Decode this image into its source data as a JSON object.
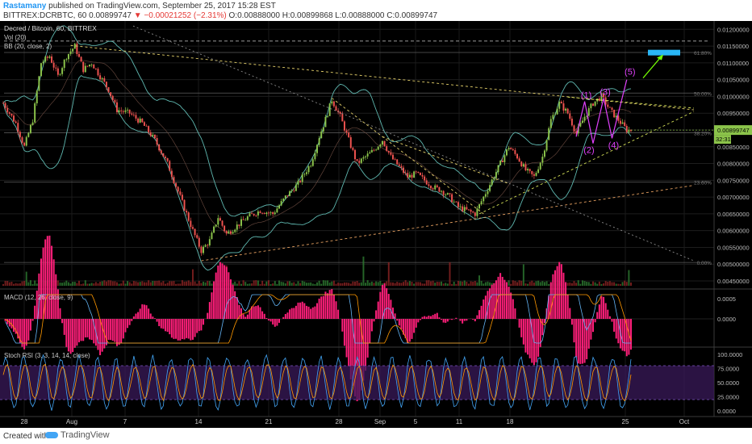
{
  "header": {
    "author": "Rastamany",
    "published_text": "published on TradingView.com, September 25, 2017 15:28 EST",
    "symbol_line": "BITTREX:DCRBTC, 60",
    "last_price": "0.00899747",
    "change": "▼ −0.00021252 (−2.31%)",
    "ohlc": "O:0.00888000 H:0.00899868 L:0.00888000 C:0.00899747"
  },
  "footer": {
    "created_with": "Created with",
    "brand": "TradingView"
  },
  "colors": {
    "background": "#000000",
    "up": "#8bc34a",
    "down": "#ef5350",
    "bollinger": "#5fb8b0",
    "accent_pink": "#e040fb",
    "price_tag": "#8bc34a",
    "target_box": "#29b6f6"
  },
  "chart_data": [
    {
      "type": "candlestick",
      "title": "Decred / Bitcoin, 60, BITTREX",
      "legend": [
        "Vol (20)",
        "BB (20, close, 2)"
      ],
      "ylim": [
        0.0045,
        0.0122
      ],
      "y_ticks": [
        "0.01200000",
        "0.01150000",
        "0.01100000",
        "0.01050000",
        "0.01000000",
        "0.00950000",
        "0.00900000",
        "0.00850000",
        "0.00800000",
        "0.00750000",
        "0.00700000",
        "0.00650000",
        "0.00600000",
        "0.00550000",
        "0.00500000",
        "0.00450000"
      ],
      "x_ticks": [
        "28",
        "Aug",
        "7",
        "14",
        "21",
        "28",
        "Sep",
        "5",
        "11",
        "18",
        "25",
        "Oct"
      ],
      "price_path": [
        [
          0,
          0.0098
        ],
        [
          6,
          0.0092
        ],
        [
          10,
          0.0085
        ],
        [
          14,
          0.0093
        ],
        [
          18,
          0.011
        ],
        [
          22,
          0.0112
        ],
        [
          26,
          0.0106
        ],
        [
          30,
          0.0112
        ],
        [
          34,
          0.0115
        ],
        [
          38,
          0.0108
        ],
        [
          42,
          0.011
        ],
        [
          46,
          0.0106
        ],
        [
          50,
          0.0102
        ],
        [
          54,
          0.0096
        ],
        [
          60,
          0.0095
        ],
        [
          66,
          0.0092
        ],
        [
          72,
          0.0087
        ],
        [
          78,
          0.008
        ],
        [
          84,
          0.007
        ],
        [
          90,
          0.006
        ],
        [
          94,
          0.0054
        ],
        [
          98,
          0.0057
        ],
        [
          102,
          0.0064
        ],
        [
          106,
          0.0059
        ],
        [
          110,
          0.0061
        ],
        [
          116,
          0.0064
        ],
        [
          122,
          0.0066
        ],
        [
          128,
          0.0065
        ],
        [
          134,
          0.007
        ],
        [
          140,
          0.0074
        ],
        [
          146,
          0.008
        ],
        [
          150,
          0.0088
        ],
        [
          154,
          0.0095
        ],
        [
          156,
          0.0099
        ],
        [
          160,
          0.0094
        ],
        [
          164,
          0.0087
        ],
        [
          168,
          0.008
        ],
        [
          172,
          0.0082
        ],
        [
          176,
          0.0084
        ],
        [
          180,
          0.0087
        ],
        [
          184,
          0.0082
        ],
        [
          188,
          0.0079
        ],
        [
          192,
          0.0076
        ],
        [
          196,
          0.0077
        ],
        [
          200,
          0.0075
        ],
        [
          204,
          0.0073
        ],
        [
          208,
          0.0072
        ],
        [
          212,
          0.007
        ],
        [
          216,
          0.0067
        ],
        [
          220,
          0.0066
        ],
        [
          224,
          0.0065
        ],
        [
          228,
          0.007
        ],
        [
          232,
          0.0075
        ],
        [
          236,
          0.008
        ],
        [
          240,
          0.0085
        ],
        [
          244,
          0.0082
        ],
        [
          248,
          0.0078
        ],
        [
          252,
          0.0076
        ],
        [
          256,
          0.0082
        ],
        [
          260,
          0.0093
        ],
        [
          264,
          0.0098
        ],
        [
          268,
          0.0095
        ],
        [
          272,
          0.0089
        ],
        [
          276,
          0.0094
        ],
        [
          280,
          0.0098
        ],
        [
          284,
          0.01
        ],
        [
          288,
          0.0096
        ],
        [
          292,
          0.0093
        ],
        [
          296,
          0.009
        ],
        [
          298,
          0.00899747
        ]
      ],
      "last_price_label": "0.00899747",
      "countdown_label": "32:31",
      "fib_levels": [
        {
          "label": "61.80%",
          "value": 0.01131
        },
        {
          "label": "50.00%",
          "value": 0.0101
        },
        {
          "label": "38.20%",
          "value": 0.00892
        },
        {
          "label": "23.60%",
          "value": 0.00745
        },
        {
          "label": "0.00%",
          "value": 0.00505
        }
      ],
      "wave_labels": [
        "(1)",
        "(2)",
        "(3)",
        "(4)",
        "(5)"
      ]
    },
    {
      "type": "line",
      "title": "MACD (12, 26, close, 9)",
      "ylim": [
        -0.0007,
        0.0007
      ],
      "y_ticks": [
        "0.0005",
        "0.0000"
      ]
    },
    {
      "type": "line",
      "title": "Stoch RSI (3, 3, 14, 14, close)",
      "ylim": [
        -10,
        110
      ],
      "y_ticks": [
        "100.0000",
        "75.0000",
        "50.0000",
        "25.0000",
        "0.0000"
      ],
      "bands": [
        20,
        80
      ]
    }
  ]
}
